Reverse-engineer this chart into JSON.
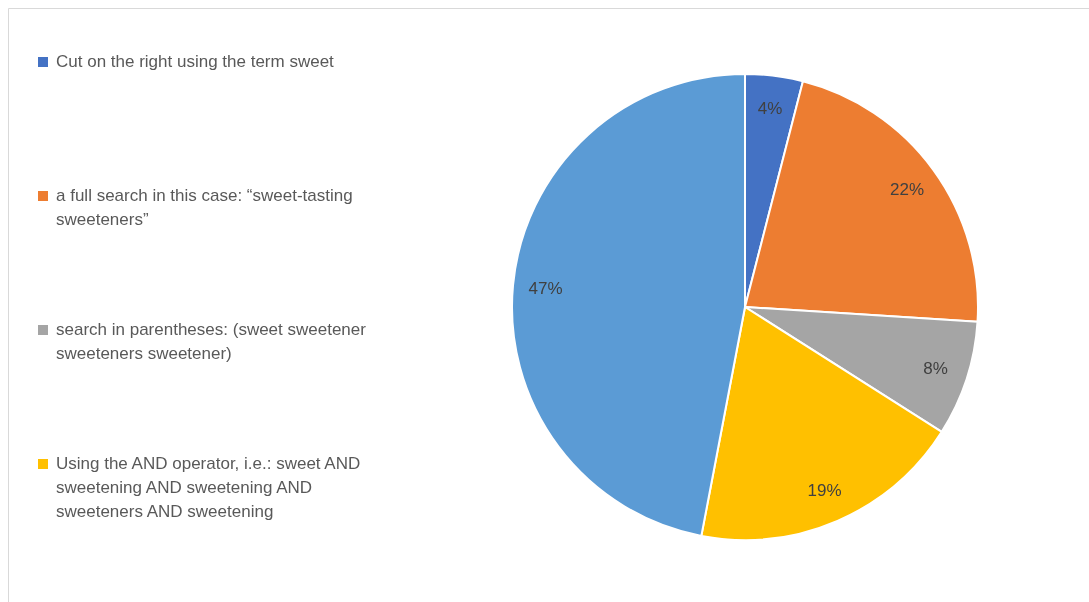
{
  "chart_data": {
    "type": "pie",
    "categories": [
      "Cut on the right using the term sweet",
      "a full search in this case: “sweet-tasting sweeteners”",
      "search in parentheses: (sweet sweetener sweeteners sweetener)",
      "Using the AND operator, i.e.: sweet AND sweetening AND sweetening AND sweeteners AND sweetening",
      null
    ],
    "values": [
      4,
      22,
      8,
      19,
      47
    ],
    "colors": [
      "#4472c4",
      "#ed7d31",
      "#a5a5a5",
      "#ffc000",
      "#5b9bd5"
    ],
    "value_labels": [
      "4%",
      "22%",
      "8%",
      "19%",
      "47%"
    ],
    "legend": "left"
  }
}
